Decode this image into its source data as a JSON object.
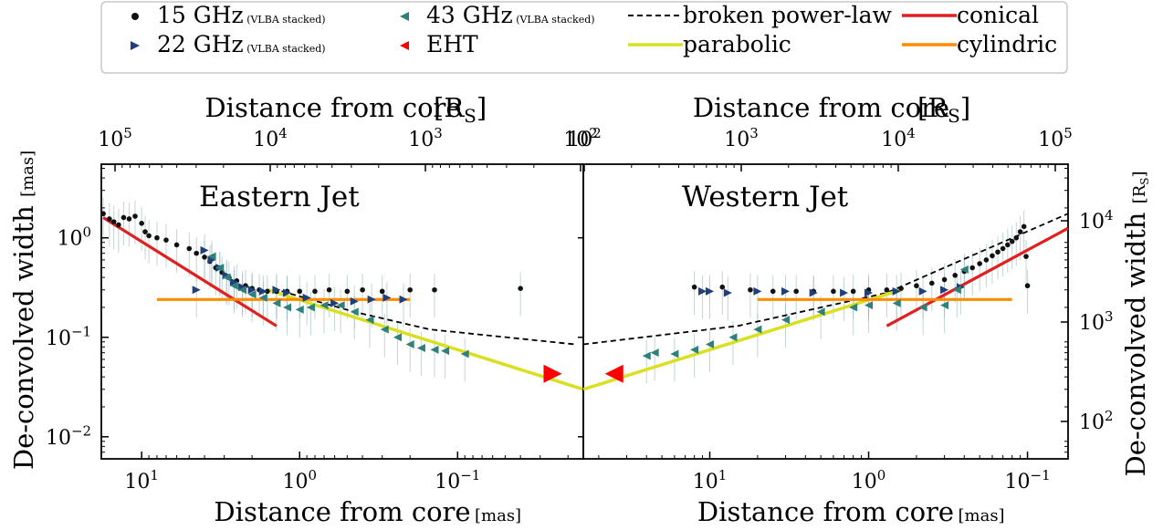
{
  "figure": {
    "legend": [
      {
        "label": "15 GHz",
        "note": "(VLBA stacked)",
        "marker": "hexagon",
        "color": "#111111"
      },
      {
        "label": "22 GHz",
        "note": "(VLBA stacked)",
        "marker": "triangle-right",
        "color": "#1f3f7a"
      },
      {
        "label": "43 GHz",
        "note": "(VLBA stacked)",
        "marker": "triangle-left",
        "color": "#2f7f7a"
      },
      {
        "label": "EHT",
        "note": "",
        "marker": "triangle-left",
        "color": "#ff0000"
      },
      {
        "label": "broken power-law",
        "line": "dashed",
        "color": "#000000"
      },
      {
        "label": "parabolic",
        "line": "solid",
        "color": "#d9e021"
      },
      {
        "label": "conical",
        "line": "solid",
        "color": "#e02020"
      },
      {
        "label": "cylindric",
        "line": "solid",
        "color": "#ff8c00"
      }
    ]
  },
  "chart_data": [
    {
      "type": "scatter",
      "title": "Eastern Jet",
      "xlabel": "Distance from core",
      "xlabel_unit": "[mas]",
      "ylabel": "De-convolved width",
      "ylabel_unit": "[mas]",
      "top_xlabel": "Distance from core",
      "top_xlabel_unit": "[R_S]",
      "x_scale": "log",
      "x_reversed": true,
      "xlim": [
        18,
        0.016
      ],
      "y_scale": "log",
      "ylim": [
        0.006,
        5.5
      ],
      "top_x_ticks": [
        "10^5",
        "10^4",
        "10^3",
        "10^2"
      ],
      "bottom_x_ticks": [
        "10^1",
        "10^0",
        "10^-1"
      ],
      "y_ticks": [
        "10^0",
        "10^-1",
        "10^-2"
      ],
      "series": [
        {
          "name": "15 GHz",
          "points": [
            [
              17.5,
              1.75
            ],
            [
              16,
              1.55
            ],
            [
              15,
              1.45
            ],
            [
              14,
              1.35
            ],
            [
              13,
              1.6
            ],
            [
              12,
              1.55
            ],
            [
              11,
              1.65
            ],
            [
              10,
              1.4
            ],
            [
              9.5,
              1.15
            ],
            [
              9,
              1.05
            ],
            [
              8,
              1.0
            ],
            [
              7,
              0.95
            ],
            [
              6,
              0.85
            ],
            [
              5,
              0.78
            ],
            [
              4.5,
              0.7
            ],
            [
              4,
              0.64
            ],
            [
              3.7,
              0.58
            ],
            [
              3.4,
              0.5
            ],
            [
              3.1,
              0.45
            ],
            [
              2.8,
              0.4
            ],
            [
              2.5,
              0.37
            ],
            [
              2.2,
              0.33
            ],
            [
              2.0,
              0.31
            ],
            [
              1.8,
              0.3
            ],
            [
              1.6,
              0.29
            ],
            [
              1.4,
              0.29
            ],
            [
              1.2,
              0.29
            ],
            [
              1.0,
              0.29
            ],
            [
              0.8,
              0.29
            ],
            [
              0.65,
              0.3
            ],
            [
              0.5,
              0.29
            ],
            [
              0.4,
              0.3
            ],
            [
              0.3,
              0.29
            ],
            [
              0.2,
              0.3
            ],
            [
              0.14,
              0.3
            ],
            [
              0.04,
              0.31
            ]
          ]
        },
        {
          "name": "22 GHz",
          "points": [
            [
              4.5,
              0.3
            ],
            [
              4.0,
              0.75
            ],
            [
              3.6,
              0.6
            ],
            [
              3.2,
              0.5
            ],
            [
              2.9,
              0.42
            ],
            [
              2.6,
              0.36
            ],
            [
              2.3,
              0.32
            ],
            [
              2.0,
              0.3
            ],
            [
              1.7,
              0.29
            ],
            [
              1.4,
              0.3
            ],
            [
              1.2,
              0.28
            ],
            [
              0.9,
              0.25
            ],
            [
              0.6,
              0.22
            ],
            [
              0.45,
              0.23
            ],
            [
              0.35,
              0.24
            ],
            [
              0.28,
              0.25
            ],
            [
              0.22,
              0.24
            ]
          ]
        },
        {
          "name": "43 GHz",
          "points": [
            [
              3.6,
              0.65
            ],
            [
              3.2,
              0.5
            ],
            [
              2.9,
              0.4
            ],
            [
              2.6,
              0.33
            ],
            [
              2.3,
              0.3
            ],
            [
              2.0,
              0.27
            ],
            [
              1.7,
              0.25
            ],
            [
              1.4,
              0.22
            ],
            [
              1.2,
              0.2
            ],
            [
              1.0,
              0.19
            ],
            [
              0.85,
              0.2
            ],
            [
              0.7,
              0.21
            ],
            [
              0.55,
              0.21
            ],
            [
              0.45,
              0.18
            ],
            [
              0.36,
              0.15
            ],
            [
              0.29,
              0.12
            ],
            [
              0.24,
              0.1
            ],
            [
              0.2,
              0.085
            ],
            [
              0.17,
              0.078
            ],
            [
              0.14,
              0.075
            ],
            [
              0.12,
              0.073
            ],
            [
              0.09,
              0.068
            ]
          ]
        },
        {
          "name": "EHT",
          "points": [
            [
              0.025,
              0.043
            ]
          ]
        }
      ],
      "fits": [
        {
          "name": "broken power-law",
          "points": [
            [
              1.3,
              0.29
            ],
            [
              0.45,
              0.18
            ],
            [
              0.15,
              0.12
            ],
            [
              0.018,
              0.085
            ]
          ]
        },
        {
          "name": "parabolic",
          "points": [
            [
              1.6,
              0.3
            ],
            [
              0.016,
              0.03
            ]
          ]
        },
        {
          "name": "conical",
          "points": [
            [
              17.5,
              1.6
            ],
            [
              1.4,
              0.13
            ]
          ]
        },
        {
          "name": "cylindric",
          "points": [
            [
              8.0,
              0.24
            ],
            [
              0.2,
              0.24
            ]
          ]
        }
      ]
    },
    {
      "type": "scatter",
      "title": "Western Jet",
      "xlabel": "Distance from core",
      "xlabel_unit": "[mas]",
      "ylabel": "De-convolved width",
      "ylabel_unit": "[R_S]",
      "top_xlabel": "Distance from core",
      "top_xlabel_unit": "[R_S]",
      "x_scale": "log",
      "xlim": [
        0.016,
        18
      ],
      "y_scale": "log",
      "top_x_ticks": [
        "10^2",
        "10^3",
        "10^4",
        "10^5"
      ],
      "bottom_x_ticks": [
        "10^-1",
        "10^0",
        "10^1"
      ],
      "y_ticks": [
        "10^4",
        "10^3",
        "10^2"
      ],
      "series": [
        {
          "name": "15 GHz",
          "points": [
            [
              0.08,
              0.32
            ],
            [
              0.12,
              0.32
            ],
            [
              0.18,
              0.3
            ],
            [
              0.25,
              0.29
            ],
            [
              0.35,
              0.29
            ],
            [
              0.45,
              0.29
            ],
            [
              0.6,
              0.29
            ],
            [
              0.8,
              0.29
            ],
            [
              1.0,
              0.3
            ],
            [
              1.3,
              0.3
            ],
            [
              1.6,
              0.31
            ],
            [
              2.0,
              0.33
            ],
            [
              2.5,
              0.35
            ],
            [
              3.0,
              0.38
            ],
            [
              3.5,
              0.42
            ],
            [
              4.0,
              0.46
            ],
            [
              4.5,
              0.5
            ],
            [
              5.0,
              0.55
            ],
            [
              5.5,
              0.6
            ],
            [
              6.0,
              0.66
            ],
            [
              6.5,
              0.72
            ],
            [
              7.0,
              0.78
            ],
            [
              7.5,
              0.85
            ],
            [
              8.0,
              0.92
            ],
            [
              8.5,
              1.0
            ],
            [
              9.0,
              1.15
            ],
            [
              9.5,
              1.3
            ],
            [
              9.8,
              0.65
            ],
            [
              10,
              0.33
            ]
          ]
        },
        {
          "name": "22 GHz",
          "points": [
            [
              0.09,
              0.29
            ],
            [
              0.1,
              0.29
            ],
            [
              0.13,
              0.28
            ],
            [
              0.2,
              0.29
            ],
            [
              0.3,
              0.29
            ],
            [
              0.45,
              0.28
            ],
            [
              0.7,
              0.28
            ],
            [
              1.0,
              0.28
            ],
            [
              1.5,
              0.29
            ],
            [
              2.2,
              0.29
            ],
            [
              3.0,
              0.3
            ],
            [
              3.8,
              0.32
            ]
          ]
        },
        {
          "name": "43 GHz",
          "points": [
            [
              0.04,
              0.065
            ],
            [
              0.045,
              0.07
            ],
            [
              0.06,
              0.068
            ],
            [
              0.08,
              0.075
            ],
            [
              0.1,
              0.085
            ],
            [
              0.14,
              0.1
            ],
            [
              0.2,
              0.12
            ],
            [
              0.3,
              0.15
            ],
            [
              0.5,
              0.18
            ],
            [
              0.8,
              0.2
            ],
            [
              1.0,
              0.21
            ],
            [
              1.5,
              0.22
            ],
            [
              2.2,
              0.2
            ],
            [
              3.0,
              0.21
            ],
            [
              3.6,
              0.3
            ],
            [
              4.0,
              0.48
            ]
          ]
        },
        {
          "name": "EHT",
          "points": [
            [
              0.025,
              0.043
            ]
          ]
        }
      ],
      "fits": [
        {
          "name": "broken power-law",
          "points": [
            [
              0.016,
              0.085
            ],
            [
              0.15,
              0.13
            ],
            [
              1.3,
              0.28
            ],
            [
              18,
              1.75
            ]
          ]
        },
        {
          "name": "parabolic",
          "points": [
            [
              0.016,
              0.03
            ],
            [
              1.6,
              0.3
            ]
          ]
        },
        {
          "name": "conical",
          "points": [
            [
              1.3,
              0.13
            ],
            [
              18,
              1.25
            ]
          ]
        },
        {
          "name": "cylindric",
          "points": [
            [
              0.2,
              0.24
            ],
            [
              8.0,
              0.24
            ]
          ]
        }
      ]
    }
  ]
}
